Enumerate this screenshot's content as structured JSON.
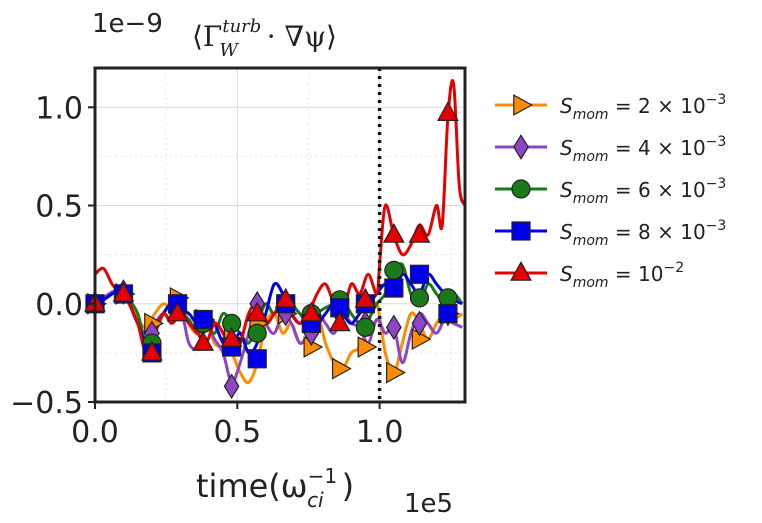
{
  "chart_data": {
    "type": "line",
    "title": "⟨Γ_W^turb · ∇ψ⟩",
    "title_parts": {
      "open": "⟨Γ",
      "sup": "turb",
      "sub": "W",
      "close": " · ∇ψ⟩"
    },
    "xlabel": "time(ω_ci^-1)",
    "xlabel_parts": {
      "base": "time(ω",
      "sub": "ci",
      "sup": "−1",
      "close": ")"
    },
    "ylabel": "",
    "x_multiplier_label": "1e5",
    "y_multiplier_label": "1e−9",
    "xlim": [
      0.0,
      1.3
    ],
    "ylim": [
      -0.5,
      1.2
    ],
    "xticks": [
      0.0,
      0.5,
      1.0
    ],
    "xtick_labels": [
      "0.0",
      "0.5",
      "1.0"
    ],
    "yticks": [
      -0.5,
      0.0,
      0.5,
      1.0
    ],
    "ytick_labels": [
      "−0.5",
      "0.0",
      "0.5",
      "1.0"
    ],
    "grid": true,
    "legend_position": "outside-right",
    "vline_x": 1.0,
    "series": [
      {
        "name": "S_mom = 2 × 10^-3",
        "label_parts": {
          "S": "S",
          "sub": "mom",
          "rest": " = 2 × 10",
          "sup": "−3"
        },
        "color": "#ff8c00",
        "marker": "triangle-right",
        "x": [
          0.0,
          0.03,
          0.06,
          0.09,
          0.12,
          0.15,
          0.18,
          0.21,
          0.24,
          0.27,
          0.3,
          0.33,
          0.36,
          0.39,
          0.42,
          0.45,
          0.48,
          0.51,
          0.54,
          0.57,
          0.6,
          0.63,
          0.66,
          0.69,
          0.72,
          0.75,
          0.78,
          0.81,
          0.84,
          0.87,
          0.9,
          0.93,
          0.96,
          0.99,
          1.02,
          1.05,
          1.08,
          1.11,
          1.14,
          1.17,
          1.2,
          1.23,
          1.26,
          1.29
        ],
        "values": [
          0.01,
          0.02,
          0.05,
          0.08,
          0.0,
          -0.08,
          -0.12,
          -0.05,
          0.0,
          -0.02,
          0.02,
          -0.1,
          -0.15,
          -0.08,
          -0.2,
          -0.22,
          -0.25,
          -0.35,
          -0.4,
          -0.3,
          -0.1,
          -0.05,
          -0.15,
          -0.1,
          -0.2,
          -0.15,
          -0.05,
          -0.2,
          -0.3,
          -0.33,
          -0.25,
          -0.22,
          -0.1,
          0.0,
          -0.25,
          -0.35,
          -0.2,
          -0.05,
          -0.1,
          -0.18,
          -0.1,
          -0.05,
          -0.08,
          -0.05
        ],
        "marker_x": [
          0.0,
          0.1,
          0.2,
          0.29,
          0.38,
          0.48,
          0.57,
          0.67,
          0.76,
          0.86,
          0.95,
          1.05,
          1.14,
          1.24
        ],
        "marker_y": [
          0.0,
          0.05,
          -0.1,
          0.03,
          -0.08,
          -0.18,
          -0.1,
          -0.05,
          -0.22,
          -0.33,
          -0.22,
          -0.35,
          -0.18,
          -0.05
        ]
      },
      {
        "name": "S_mom = 4 × 10^-3",
        "label_parts": {
          "S": "S",
          "sub": "mom",
          "rest": " = 4 × 10",
          "sup": "−3"
        },
        "color": "#8e44c8",
        "marker": "diamond",
        "x": [
          0.0,
          0.03,
          0.06,
          0.09,
          0.12,
          0.15,
          0.18,
          0.21,
          0.24,
          0.27,
          0.3,
          0.33,
          0.36,
          0.39,
          0.42,
          0.45,
          0.48,
          0.51,
          0.54,
          0.57,
          0.6,
          0.63,
          0.66,
          0.69,
          0.72,
          0.75,
          0.78,
          0.81,
          0.84,
          0.87,
          0.9,
          0.93,
          0.96,
          0.99,
          1.02,
          1.05,
          1.08,
          1.11,
          1.14,
          1.17,
          1.2,
          1.23,
          1.26,
          1.29
        ],
        "values": [
          0.0,
          0.03,
          0.06,
          0.07,
          0.0,
          -0.1,
          -0.15,
          -0.1,
          -0.05,
          -0.08,
          -0.02,
          -0.2,
          -0.22,
          -0.1,
          -0.18,
          -0.25,
          -0.4,
          -0.3,
          -0.15,
          0.0,
          -0.1,
          -0.15,
          -0.05,
          -0.1,
          -0.2,
          -0.15,
          -0.05,
          -0.1,
          -0.15,
          -0.05,
          -0.1,
          -0.12,
          -0.2,
          -0.08,
          -0.15,
          -0.12,
          -0.3,
          -0.15,
          -0.05,
          -0.1,
          -0.15,
          -0.08,
          -0.1,
          -0.12
        ],
        "marker_x": [
          0.0,
          0.1,
          0.2,
          0.29,
          0.38,
          0.48,
          0.57,
          0.67,
          0.76,
          0.86,
          0.95,
          1.05,
          1.14,
          1.24
        ],
        "marker_y": [
          0.0,
          0.06,
          -0.15,
          -0.02,
          -0.1,
          -0.42,
          0.0,
          -0.05,
          -0.15,
          -0.05,
          -0.1,
          -0.12,
          -0.1,
          -0.05
        ]
      },
      {
        "name": "S_mom = 6 × 10^-3",
        "label_parts": {
          "S": "S",
          "sub": "mom",
          "rest": " = 6 × 10",
          "sup": "−3"
        },
        "color": "#1a7a1a",
        "marker": "circle",
        "x": [
          0.0,
          0.03,
          0.06,
          0.09,
          0.12,
          0.15,
          0.18,
          0.21,
          0.24,
          0.27,
          0.3,
          0.33,
          0.36,
          0.39,
          0.42,
          0.45,
          0.48,
          0.51,
          0.54,
          0.57,
          0.6,
          0.63,
          0.66,
          0.69,
          0.72,
          0.75,
          0.78,
          0.81,
          0.84,
          0.87,
          0.9,
          0.93,
          0.96,
          0.99,
          1.02,
          1.05,
          1.08,
          1.11,
          1.14,
          1.17,
          1.2,
          1.23,
          1.26,
          1.29
        ],
        "values": [
          0.0,
          0.02,
          0.05,
          0.08,
          0.02,
          -0.05,
          -0.2,
          -0.15,
          -0.05,
          0.0,
          -0.05,
          -0.08,
          -0.15,
          -0.1,
          -0.15,
          -0.05,
          -0.1,
          -0.15,
          -0.2,
          -0.1,
          0.0,
          -0.05,
          0.05,
          0.0,
          -0.05,
          -0.1,
          -0.05,
          -0.02,
          0.0,
          0.02,
          -0.05,
          -0.1,
          -0.08,
          0.0,
          0.05,
          0.15,
          0.2,
          0.05,
          0.0,
          0.1,
          0.05,
          0.0,
          0.05,
          0.0
        ],
        "marker_x": [
          0.0,
          0.1,
          0.2,
          0.29,
          0.38,
          0.48,
          0.57,
          0.67,
          0.76,
          0.86,
          0.95,
          1.05,
          1.14,
          1.24
        ],
        "marker_y": [
          0.0,
          0.05,
          -0.2,
          -0.03,
          -0.1,
          -0.1,
          -0.15,
          0.0,
          -0.05,
          0.02,
          -0.12,
          0.17,
          0.03,
          0.03
        ]
      },
      {
        "name": "S_mom = 8 × 10^-3",
        "label_parts": {
          "S": "S",
          "sub": "mom",
          "rest": " = 8 × 10",
          "sup": "−3"
        },
        "color": "#0000e6",
        "marker": "square",
        "x": [
          0.0,
          0.03,
          0.06,
          0.09,
          0.12,
          0.15,
          0.18,
          0.21,
          0.24,
          0.27,
          0.3,
          0.33,
          0.36,
          0.39,
          0.42,
          0.45,
          0.48,
          0.51,
          0.54,
          0.57,
          0.6,
          0.63,
          0.66,
          0.69,
          0.72,
          0.75,
          0.78,
          0.81,
          0.84,
          0.87,
          0.9,
          0.93,
          0.96,
          0.99,
          1.02,
          1.05,
          1.08,
          1.11,
          1.14,
          1.17,
          1.2,
          1.23,
          1.26,
          1.29
        ],
        "values": [
          0.0,
          0.02,
          0.05,
          0.06,
          0.0,
          -0.1,
          -0.2,
          -0.12,
          -0.05,
          0.0,
          -0.03,
          -0.05,
          -0.1,
          -0.05,
          -0.1,
          -0.2,
          -0.22,
          -0.15,
          -0.25,
          -0.2,
          -0.05,
          0.1,
          0.05,
          -0.05,
          -0.1,
          -0.05,
          -0.1,
          -0.05,
          0.0,
          -0.05,
          -0.1,
          -0.05,
          0.0,
          0.05,
          0.1,
          0.05,
          0.15,
          0.1,
          0.05,
          0.15,
          0.1,
          0.05,
          0.02,
          0.0
        ],
        "marker_x": [
          0.0,
          0.1,
          0.2,
          0.29,
          0.38,
          0.48,
          0.57,
          0.67,
          0.76,
          0.86,
          0.95,
          1.05,
          1.14,
          1.24
        ],
        "marker_y": [
          0.0,
          0.05,
          -0.25,
          0.0,
          -0.08,
          -0.22,
          -0.28,
          0.0,
          -0.1,
          -0.02,
          0.0,
          0.08,
          0.15,
          -0.05
        ]
      },
      {
        "name": "S_mom = 10^-2",
        "label_parts": {
          "S": "S",
          "sub": "mom",
          "rest": " = 10",
          "sup": "−2"
        },
        "color": "#e60000",
        "marker": "triangle-up",
        "x": [
          0.0,
          0.03,
          0.06,
          0.09,
          0.12,
          0.15,
          0.18,
          0.21,
          0.24,
          0.27,
          0.3,
          0.33,
          0.36,
          0.39,
          0.42,
          0.45,
          0.48,
          0.51,
          0.54,
          0.57,
          0.6,
          0.63,
          0.66,
          0.69,
          0.72,
          0.75,
          0.78,
          0.81,
          0.84,
          0.87,
          0.9,
          0.93,
          0.96,
          0.99,
          1.0,
          1.02,
          1.05,
          1.08,
          1.11,
          1.14,
          1.17,
          1.2,
          1.22,
          1.24,
          1.26,
          1.28,
          1.3
        ],
        "values": [
          0.15,
          0.18,
          0.1,
          0.05,
          0.0,
          -0.1,
          -0.25,
          -0.15,
          -0.05,
          -0.1,
          -0.05,
          -0.1,
          -0.15,
          -0.2,
          -0.1,
          -0.15,
          -0.25,
          -0.2,
          -0.05,
          0.0,
          -0.1,
          -0.05,
          0.0,
          -0.05,
          -0.1,
          -0.05,
          0.05,
          0.1,
          0.0,
          -0.05,
          0.1,
          0.05,
          0.15,
          0.05,
          0.2,
          0.5,
          0.35,
          0.25,
          0.3,
          0.4,
          0.35,
          0.5,
          0.4,
          0.95,
          1.12,
          0.6,
          0.5
        ],
        "marker_x": [
          0.0,
          0.1,
          0.2,
          0.29,
          0.38,
          0.48,
          0.57,
          0.67,
          0.76,
          0.86,
          0.95,
          1.05,
          1.14,
          1.24
        ],
        "marker_y": [
          0.0,
          0.05,
          -0.25,
          -0.05,
          -0.2,
          -0.18,
          -0.05,
          0.02,
          -0.05,
          -0.1,
          0.02,
          0.35,
          0.35,
          0.97
        ]
      }
    ]
  }
}
